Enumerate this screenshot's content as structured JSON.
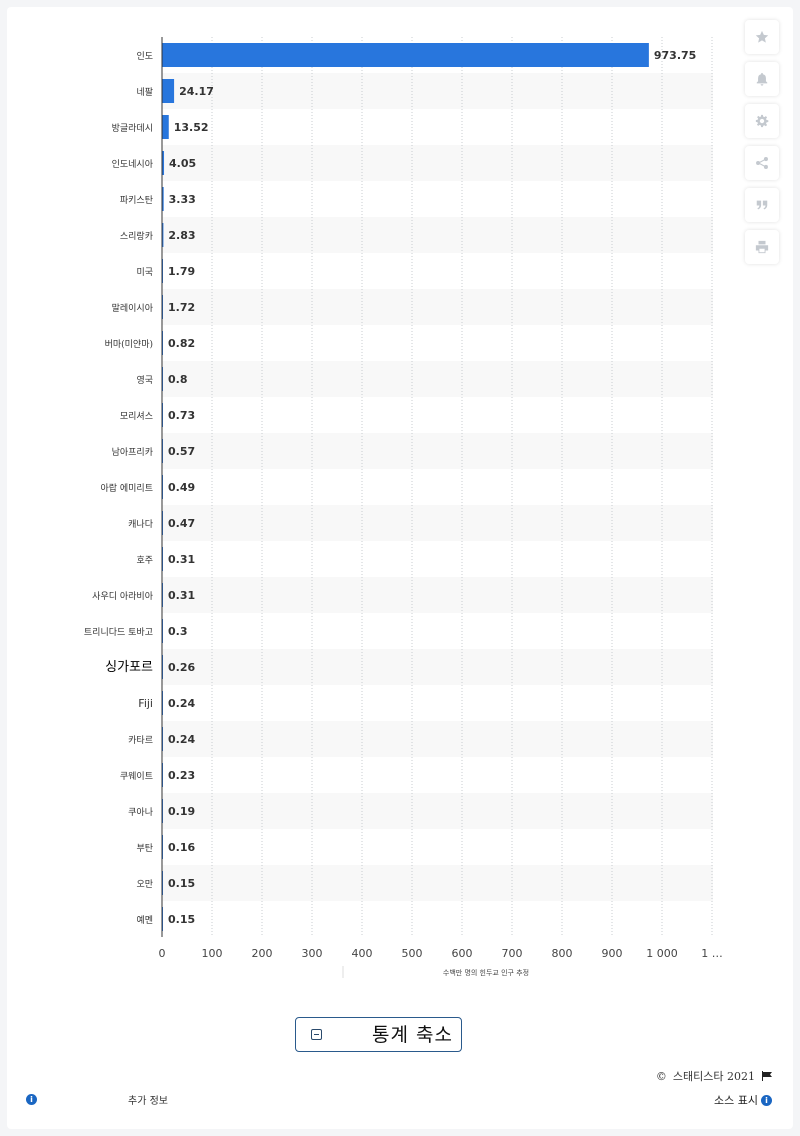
{
  "chart_data": {
    "type": "bar",
    "orientation": "horizontal",
    "categories": [
      "인도",
      "네팔",
      "방글라데시",
      "인도네시아",
      "파키스탄",
      "스리랑카",
      "미국",
      "말레이시아",
      "버마(미얀마)",
      "영국",
      "모리셔스",
      "남아프리카",
      "아랍 에미리트",
      "캐나다",
      "호주",
      "사우디 아라비아",
      "트리니다드 토바고",
      "싱가포르",
      "Fiji",
      "카타르",
      "쿠웨이트",
      "쿠아나",
      "부탄",
      "오만",
      "예멘"
    ],
    "values": [
      973.75,
      24.17,
      13.52,
      4.05,
      3.33,
      2.83,
      1.79,
      1.72,
      0.82,
      0.8,
      0.73,
      0.57,
      0.49,
      0.47,
      0.31,
      0.31,
      0.3,
      0.26,
      0.24,
      0.24,
      0.23,
      0.19,
      0.16,
      0.15,
      0.15
    ],
    "value_labels": [
      "973.75",
      "24.17",
      "13.52",
      "4.05",
      "3.33",
      "2.83",
      "1.79",
      "1.72",
      "0.82",
      "0.8",
      "0.73",
      "0.57",
      "0.49",
      "0.47",
      "0.31",
      "0.31",
      "0.3",
      "0.26",
      "0.24",
      "0.24",
      "0.23",
      "0.19",
      "0.16",
      "0.15",
      "0.15"
    ],
    "x_ticks": [
      "0",
      "100",
      "200",
      "300",
      "400",
      "500",
      "600",
      "700",
      "800",
      "900",
      "1 000",
      "1 …"
    ],
    "xlim": [
      0,
      1100
    ],
    "xlabel": "수백만 명의 힌두교 인구 추정",
    "ylabel": "",
    "bar_color": "#2876dd",
    "grid": true
  },
  "toolbar": {
    "icons": [
      "star-icon",
      "bell-icon",
      "gear-icon",
      "share-icon",
      "quote-icon",
      "print-icon"
    ]
  },
  "footer": {
    "collapse_label": "통계 축소",
    "copyright": "스태티스타 2021",
    "more_info": "추가 정보",
    "show_source": "소스 표시"
  }
}
